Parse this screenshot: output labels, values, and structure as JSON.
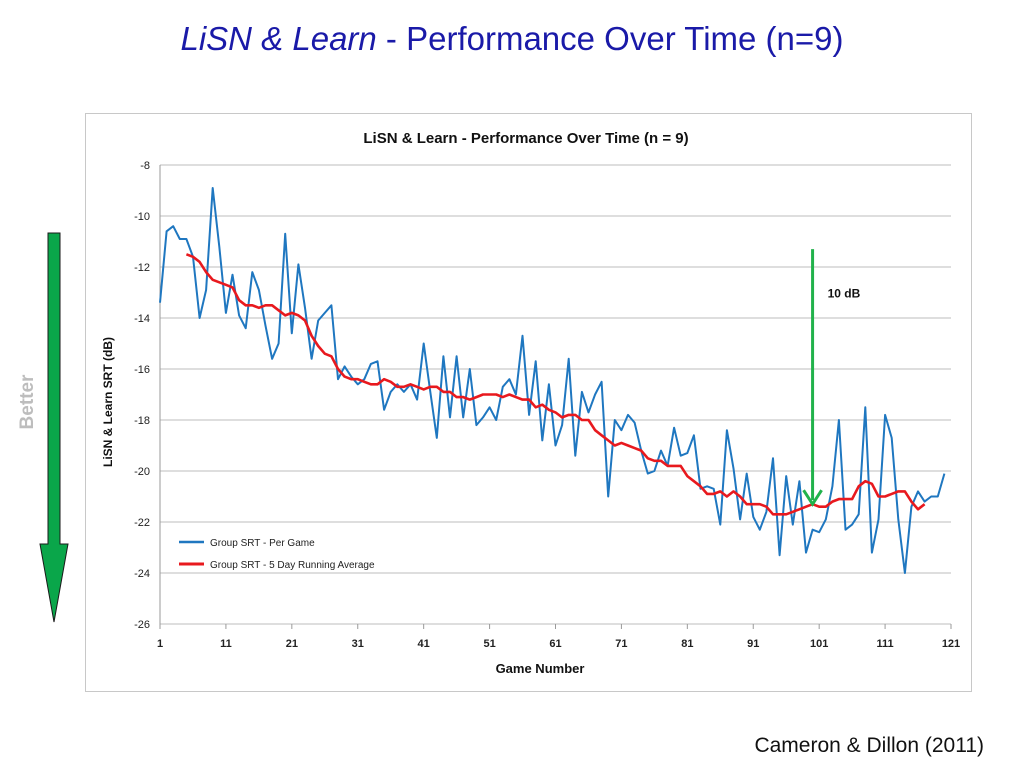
{
  "slide": {
    "title_italic": "LiSN & Learn",
    "title_rest": " - Performance Over Time (n=9)",
    "side_label": "Better",
    "citation": "Cameron & Dillon (2011)"
  },
  "colors": {
    "title": "#1a1aa8",
    "per_game": "#1f77c0",
    "running_avg": "#e8191e",
    "annotation_arrow": "#21b24b",
    "better_arrow": "#0aa64a"
  },
  "chart_data": {
    "type": "line",
    "title": "LiSN & Learn - Performance Over  Time (n = 9)",
    "xlabel": "Game Number",
    "ylabel": "LiSN & Learn SRT (dB)",
    "xlim": [
      1,
      121
    ],
    "ylim": [
      -26,
      -8
    ],
    "x_ticks": [
      1,
      11,
      21,
      31,
      41,
      51,
      61,
      71,
      81,
      91,
      101,
      111,
      121
    ],
    "y_ticks": [
      -8,
      -10,
      -12,
      -14,
      -16,
      -18,
      -20,
      -22,
      -24,
      -26
    ],
    "grid": "horizontal",
    "legend_position": "bottom-left",
    "annotation": {
      "label": "10 dB",
      "x": 100,
      "y_from": -11.3,
      "y_to": -21.3
    },
    "series": [
      {
        "name": "Group SRT - Per Game",
        "color": "#1f77c0",
        "x_start": 1,
        "values": [
          -13.4,
          -10.6,
          -10.4,
          -10.9,
          -10.9,
          -11.6,
          -14.0,
          -12.9,
          -8.9,
          -11.2,
          -13.8,
          -12.3,
          -13.9,
          -14.4,
          -12.2,
          -12.9,
          -14.3,
          -15.6,
          -15.0,
          -10.7,
          -14.6,
          -11.9,
          -13.6,
          -15.6,
          -14.1,
          -13.8,
          -13.5,
          -16.4,
          -15.9,
          -16.3,
          -16.6,
          -16.4,
          -15.8,
          -15.7,
          -17.6,
          -16.9,
          -16.6,
          -16.9,
          -16.6,
          -17.2,
          -15.0,
          -16.9,
          -18.7,
          -15.5,
          -17.9,
          -15.5,
          -17.9,
          -16.0,
          -18.2,
          -17.9,
          -17.5,
          -18.0,
          -16.7,
          -16.4,
          -17.0,
          -14.7,
          -17.8,
          -15.7,
          -18.8,
          -16.6,
          -19.0,
          -18.2,
          -15.6,
          -19.4,
          -16.9,
          -17.7,
          -17.0,
          -16.5,
          -21.0,
          -18.0,
          -18.4,
          -17.8,
          -18.1,
          -19.2,
          -20.1,
          -20.0,
          -19.2,
          -19.8,
          -18.3,
          -19.4,
          -19.3,
          -18.6,
          -20.7,
          -20.6,
          -20.7,
          -22.1,
          -18.4,
          -19.9,
          -21.9,
          -20.1,
          -21.8,
          -22.3,
          -21.6,
          -19.5,
          -23.3,
          -20.2,
          -22.1,
          -20.4,
          -23.2,
          -22.3,
          -22.4,
          -21.9,
          -20.6,
          -18.0,
          -22.3,
          -22.1,
          -21.7,
          -17.5,
          -23.2,
          -21.9,
          -17.8,
          -18.7,
          -21.9,
          -24.0,
          -21.4,
          -20.8,
          -21.2,
          -21.0,
          -21.0,
          -20.1
        ]
      },
      {
        "name": "Group SRT - 5 Day Running Average",
        "color": "#e8191e",
        "x_start": 5,
        "values": [
          -11.5,
          -11.6,
          -11.8,
          -12.2,
          -12.5,
          -12.6,
          -12.7,
          -12.8,
          -13.3,
          -13.5,
          -13.5,
          -13.6,
          -13.5,
          -13.5,
          -13.7,
          -13.9,
          -13.8,
          -13.9,
          -14.1,
          -14.7,
          -15.1,
          -15.4,
          -15.5,
          -16.0,
          -16.3,
          -16.4,
          -16.4,
          -16.5,
          -16.6,
          -16.6,
          -16.4,
          -16.5,
          -16.7,
          -16.7,
          -16.6,
          -16.7,
          -16.8,
          -16.7,
          -16.7,
          -16.9,
          -16.9,
          -17.1,
          -17.1,
          -17.2,
          -17.1,
          -17.0,
          -17.0,
          -17.0,
          -17.1,
          -17.0,
          -17.1,
          -17.2,
          -17.2,
          -17.5,
          -17.4,
          -17.6,
          -17.7,
          -17.9,
          -17.8,
          -17.8,
          -18.0,
          -18.0,
          -18.4,
          -18.6,
          -18.8,
          -19.0,
          -18.9,
          -19.0,
          -19.1,
          -19.2,
          -19.5,
          -19.6,
          -19.6,
          -19.8,
          -19.8,
          -19.8,
          -20.2,
          -20.4,
          -20.6,
          -20.9,
          -20.9,
          -20.8,
          -21.0,
          -20.8,
          -21.0,
          -21.3,
          -21.3,
          -21.3,
          -21.4,
          -21.7,
          -21.7,
          -21.7,
          -21.6,
          -21.5,
          -21.4,
          -21.3,
          -21.4,
          -21.4,
          -21.2,
          -21.1,
          -21.1,
          -21.1,
          -20.6,
          -20.4,
          -20.5,
          -21.0,
          -21.0,
          -20.9,
          -20.8,
          -20.8,
          -21.2,
          -21.5,
          -21.3
        ]
      }
    ]
  }
}
